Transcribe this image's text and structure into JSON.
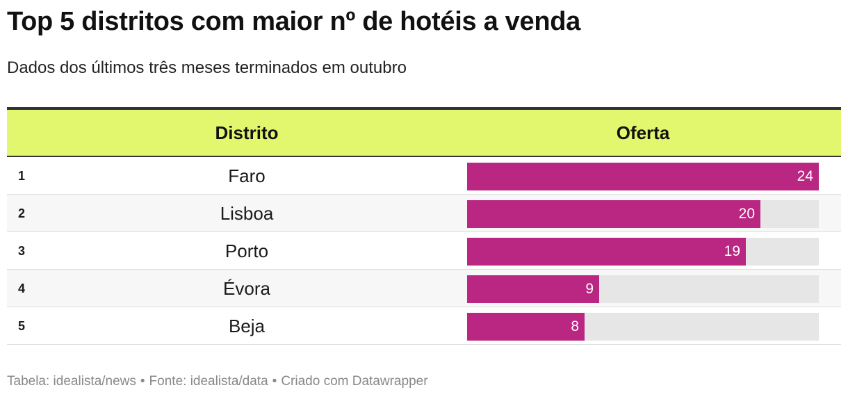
{
  "title": "Top 5 distritos com maior nº de hotéis a venda",
  "subtitle": "Dados dos últimos três meses terminados em outubro",
  "columns": {
    "distrito": "Distrito",
    "oferta": "Oferta"
  },
  "colors": {
    "header_bg": "#e2f76d",
    "bar": "#b92783",
    "track": "#e6e6e6"
  },
  "footer": {
    "table": "Tabela: idealista/news",
    "source": "Fonte: idealista/data",
    "created": "Criado com Datawrapper",
    "separator": "•"
  },
  "chart_data": {
    "type": "table",
    "title": "Top 5 distritos com maior nº de hotéis a venda",
    "subtitle": "Dados dos últimos três meses terminados em outubro",
    "columns": [
      "Distrito",
      "Oferta"
    ],
    "max": 24,
    "rows": [
      {
        "rank": "1",
        "distrito": "Faro",
        "oferta": 24
      },
      {
        "rank": "2",
        "distrito": "Lisboa",
        "oferta": 20
      },
      {
        "rank": "3",
        "distrito": "Porto",
        "oferta": 19
      },
      {
        "rank": "4",
        "distrito": "Évora",
        "oferta": 9
      },
      {
        "rank": "5",
        "distrito": "Beja",
        "oferta": 8
      }
    ]
  }
}
